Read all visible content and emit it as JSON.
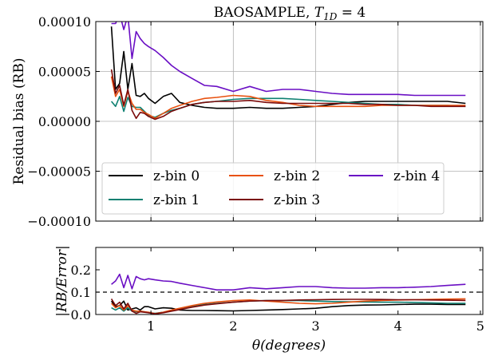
{
  "chart_data": [
    {
      "type": "line",
      "title_text": "BAOSAMPLE, ",
      "title_math": "T",
      "title_sub": "1D",
      "title_tail": " = 4",
      "ylabel": "Residual bias (RB)",
      "xlabel": "",
      "xlim": [
        0.33,
        5.03
      ],
      "ylim": [
        -0.0001,
        0.0001
      ],
      "yticks": [
        -0.0001,
        -5e-05,
        0.0,
        5e-05,
        0.0001
      ],
      "ytick_labels": [
        "−0.00010",
        "−0.00005",
        "0.00000",
        "0.00005",
        "0.00010"
      ],
      "xticks": [
        1,
        2,
        3,
        4,
        5
      ],
      "grid": true,
      "legend_placement": "lower-left, 3 columns",
      "legend": [
        "z-bin 0",
        "z-bin 1",
        "z-bin 2",
        "z-bin 3",
        "z-bin 4"
      ],
      "series": [
        {
          "name": "z-bin 0",
          "color": "#000000",
          "x": [
            0.52,
            0.57,
            0.62,
            0.67,
            0.72,
            0.77,
            0.82,
            0.87,
            0.92,
            0.97,
            1.05,
            1.15,
            1.25,
            1.35,
            1.5,
            1.65,
            1.8,
            2.0,
            2.2,
            2.4,
            2.6,
            2.8,
            3.0,
            3.2,
            3.4,
            3.6,
            3.8,
            4.0,
            4.2,
            4.4,
            4.6,
            4.82
          ],
          "y": [
            9.5e-05,
            3.2e-05,
            3.8e-05,
            7e-05,
            3.2e-05,
            5.8e-05,
            2.6e-05,
            2.5e-05,
            2.8e-05,
            2.3e-05,
            1.8e-05,
            2.5e-05,
            2.8e-05,
            1.9e-05,
            1.6e-05,
            1.4e-05,
            1.3e-05,
            1.3e-05,
            1.4e-05,
            1.3e-05,
            1.3e-05,
            1.4e-05,
            1.5e-05,
            1.7e-05,
            1.9e-05,
            2e-05,
            2e-05,
            2e-05,
            2e-05,
            2e-05,
            2e-05,
            1.8e-05
          ]
        },
        {
          "name": "z-bin 1",
          "color": "#0e8071",
          "x": [
            0.52,
            0.57,
            0.62,
            0.67,
            0.72,
            0.77,
            0.82,
            0.87,
            0.92,
            0.97,
            1.05,
            1.15,
            1.25,
            1.35,
            1.5,
            1.65,
            1.8,
            2.0,
            2.2,
            2.4,
            2.6,
            2.8,
            3.0,
            3.2,
            3.4,
            3.6,
            3.8,
            4.0,
            4.2,
            4.4,
            4.6,
            4.82
          ],
          "y": [
            2e-05,
            1.5e-05,
            2.5e-05,
            1e-05,
            2.4e-05,
            1.5e-05,
            1.4e-05,
            1.4e-05,
            1e-05,
            6e-06,
            4e-06,
            8e-06,
            1.1e-05,
            1.3e-05,
            1.7e-05,
            1.9e-05,
            2e-05,
            2.2e-05,
            2.3e-05,
            2.3e-05,
            2.3e-05,
            2.2e-05,
            2.1e-05,
            2e-05,
            1.9e-05,
            1.8e-05,
            1.7e-05,
            1.7e-05,
            1.6e-05,
            1.6e-05,
            1.6e-05,
            1.5e-05
          ]
        },
        {
          "name": "z-bin 2",
          "color": "#e8510f",
          "x": [
            0.52,
            0.57,
            0.62,
            0.67,
            0.72,
            0.77,
            0.82,
            0.87,
            0.92,
            0.97,
            1.05,
            1.15,
            1.25,
            1.35,
            1.5,
            1.65,
            1.8,
            2.0,
            2.2,
            2.4,
            2.6,
            2.8,
            3.0,
            3.2,
            3.4,
            3.6,
            3.8,
            4.0,
            4.2,
            4.4,
            4.6,
            4.82
          ],
          "y": [
            4.5e-05,
            2.5e-05,
            3.2e-05,
            1.5e-05,
            3e-05,
            1.8e-05,
            1.2e-05,
            1.2e-05,
            9e-06,
            7e-06,
            3e-06,
            8e-06,
            1.3e-05,
            1.6e-05,
            2e-05,
            2.3e-05,
            2.4e-05,
            2.6e-05,
            2.5e-05,
            2.1e-05,
            1.9e-05,
            1.6e-05,
            1.5e-05,
            1.5e-05,
            1.5e-05,
            1.5e-05,
            1.6e-05,
            1.6e-05,
            1.6e-05,
            1.6e-05,
            1.6e-05,
            1.6e-05
          ]
        },
        {
          "name": "z-bin 3",
          "color": "#7a0a0a",
          "x": [
            0.52,
            0.57,
            0.62,
            0.67,
            0.72,
            0.77,
            0.82,
            0.87,
            0.92,
            0.97,
            1.05,
            1.15,
            1.25,
            1.35,
            1.5,
            1.65,
            1.8,
            2.0,
            2.2,
            2.4,
            2.6,
            2.8,
            3.0,
            3.2,
            3.4,
            3.6,
            3.8,
            4.0,
            4.2,
            4.4,
            4.6,
            4.82
          ],
          "y": [
            5.2e-05,
            2.8e-05,
            3.6e-05,
            1.6e-05,
            3.2e-05,
            1.1e-05,
            3e-06,
            9e-06,
            8e-06,
            5e-06,
            2e-06,
            5e-06,
            1e-05,
            1.3e-05,
            1.7e-05,
            1.9e-05,
            2e-05,
            2e-05,
            2.1e-05,
            1.9e-05,
            1.8e-05,
            1.8e-05,
            1.8e-05,
            1.8e-05,
            1.8e-05,
            1.7e-05,
            1.7e-05,
            1.6e-05,
            1.6e-05,
            1.5e-05,
            1.5e-05,
            1.5e-05
          ]
        },
        {
          "name": "z-bin 4",
          "color": "#6a0fc4",
          "x": [
            0.52,
            0.57,
            0.62,
            0.67,
            0.72,
            0.77,
            0.82,
            0.87,
            0.92,
            0.97,
            1.05,
            1.15,
            1.25,
            1.35,
            1.5,
            1.65,
            1.8,
            2.0,
            2.2,
            2.4,
            2.6,
            2.8,
            3.0,
            3.2,
            3.4,
            3.6,
            3.8,
            4.0,
            4.2,
            4.4,
            4.6,
            4.82
          ],
          "y": [
            9.8e-05,
            9.8e-05,
            0.000108,
            9.2e-05,
            0.000106,
            6.3e-05,
            9e-05,
            8.3e-05,
            7.8e-05,
            7.5e-05,
            7.1e-05,
            6.4e-05,
            5.6e-05,
            5e-05,
            4.3e-05,
            3.6e-05,
            3.5e-05,
            3e-05,
            3.5e-05,
            3e-05,
            3.2e-05,
            3.2e-05,
            3e-05,
            2.8e-05,
            2.7e-05,
            2.7e-05,
            2.7e-05,
            2.7e-05,
            2.6e-05,
            2.6e-05,
            2.6e-05,
            2.6e-05
          ]
        }
      ]
    },
    {
      "type": "line",
      "ylabel": "|RB/Error|",
      "xlabel": "θ(degrees)",
      "xlim": [
        0.33,
        5.03
      ],
      "ylim": [
        0.0,
        0.3
      ],
      "yticks": [
        0.0,
        0.1,
        0.2
      ],
      "ytick_labels": [
        "0.0",
        "0.1",
        "0.2"
      ],
      "xticks": [
        1,
        2,
        3,
        4,
        5
      ],
      "xtick_labels": [
        "1",
        "2",
        "3",
        "4",
        "5"
      ],
      "grid": false,
      "reference_line": {
        "y": 0.1,
        "style": "dashed",
        "color": "#000000"
      },
      "series": [
        {
          "name": "z-bin 0",
          "color": "#000000",
          "x": [
            0.52,
            0.57,
            0.62,
            0.67,
            0.72,
            0.77,
            0.82,
            0.87,
            0.92,
            0.97,
            1.05,
            1.15,
            1.25,
            1.35,
            1.5,
            1.65,
            1.8,
            2.0,
            2.2,
            2.4,
            2.6,
            2.8,
            3.0,
            3.2,
            3.4,
            3.6,
            3.8,
            4.0,
            4.2,
            4.4,
            4.6,
            4.82
          ],
          "y": [
            0.06,
            0.035,
            0.04,
            0.06,
            0.02,
            0.025,
            0.03,
            0.02,
            0.035,
            0.035,
            0.025,
            0.03,
            0.028,
            0.02,
            0.018,
            0.018,
            0.017,
            0.016,
            0.018,
            0.02,
            0.022,
            0.025,
            0.028,
            0.035,
            0.04,
            0.042,
            0.043,
            0.045,
            0.046,
            0.046,
            0.045,
            0.045
          ]
        },
        {
          "name": "z-bin 1",
          "color": "#0e8071",
          "x": [
            0.52,
            0.57,
            0.62,
            0.67,
            0.72,
            0.77,
            0.82,
            0.87,
            0.92,
            0.97,
            1.05,
            1.15,
            1.25,
            1.35,
            1.5,
            1.65,
            1.8,
            2.0,
            2.2,
            2.4,
            2.6,
            2.8,
            3.0,
            3.2,
            3.4,
            3.6,
            3.8,
            4.0,
            4.2,
            4.4,
            4.6,
            4.82
          ],
          "y": [
            0.03,
            0.02,
            0.03,
            0.015,
            0.03,
            0.015,
            0.012,
            0.015,
            0.012,
            0.008,
            0.005,
            0.01,
            0.018,
            0.025,
            0.035,
            0.045,
            0.05,
            0.055,
            0.06,
            0.062,
            0.062,
            0.062,
            0.06,
            0.058,
            0.057,
            0.056,
            0.055,
            0.055,
            0.054,
            0.052,
            0.05,
            0.05
          ]
        },
        {
          "name": "z-bin 2",
          "color": "#e8510f",
          "x": [
            0.52,
            0.57,
            0.62,
            0.67,
            0.72,
            0.77,
            0.82,
            0.87,
            0.92,
            0.97,
            1.05,
            1.15,
            1.25,
            1.35,
            1.5,
            1.65,
            1.8,
            2.0,
            2.2,
            2.4,
            2.6,
            2.8,
            3.0,
            3.2,
            3.4,
            3.6,
            3.8,
            4.0,
            4.2,
            4.4,
            4.6,
            4.82
          ],
          "y": [
            0.05,
            0.03,
            0.04,
            0.02,
            0.04,
            0.02,
            0.015,
            0.015,
            0.012,
            0.01,
            0.004,
            0.01,
            0.02,
            0.028,
            0.04,
            0.05,
            0.056,
            0.062,
            0.065,
            0.06,
            0.055,
            0.05,
            0.048,
            0.05,
            0.055,
            0.06,
            0.063,
            0.065,
            0.066,
            0.068,
            0.069,
            0.07
          ]
        },
        {
          "name": "z-bin 3",
          "color": "#7a0a0a",
          "x": [
            0.52,
            0.57,
            0.62,
            0.67,
            0.72,
            0.77,
            0.82,
            0.87,
            0.92,
            0.97,
            1.05,
            1.15,
            1.25,
            1.35,
            1.5,
            1.65,
            1.8,
            2.0,
            2.2,
            2.4,
            2.6,
            2.8,
            3.0,
            3.2,
            3.4,
            3.6,
            3.8,
            4.0,
            4.2,
            4.4,
            4.6,
            4.82
          ],
          "y": [
            0.07,
            0.04,
            0.055,
            0.025,
            0.05,
            0.015,
            0.005,
            0.012,
            0.01,
            0.008,
            0.003,
            0.008,
            0.015,
            0.022,
            0.033,
            0.042,
            0.048,
            0.055,
            0.06,
            0.062,
            0.063,
            0.065,
            0.066,
            0.067,
            0.068,
            0.068,
            0.067,
            0.066,
            0.066,
            0.065,
            0.064,
            0.063
          ]
        },
        {
          "name": "z-bin 4",
          "color": "#6a0fc4",
          "x": [
            0.52,
            0.57,
            0.62,
            0.67,
            0.72,
            0.77,
            0.82,
            0.87,
            0.92,
            0.97,
            1.05,
            1.15,
            1.25,
            1.35,
            1.5,
            1.65,
            1.8,
            2.0,
            2.2,
            2.4,
            2.6,
            2.8,
            3.0,
            3.2,
            3.4,
            3.6,
            3.8,
            4.0,
            4.2,
            4.4,
            4.6,
            4.82
          ],
          "y": [
            0.135,
            0.15,
            0.18,
            0.12,
            0.175,
            0.115,
            0.17,
            0.16,
            0.155,
            0.16,
            0.155,
            0.15,
            0.148,
            0.14,
            0.13,
            0.12,
            0.11,
            0.11,
            0.12,
            0.115,
            0.12,
            0.125,
            0.125,
            0.12,
            0.118,
            0.118,
            0.12,
            0.12,
            0.122,
            0.125,
            0.13,
            0.135
          ]
        }
      ]
    }
  ]
}
